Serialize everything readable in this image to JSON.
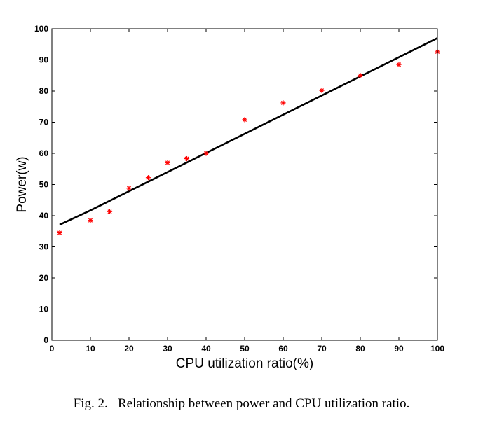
{
  "chart_data": {
    "type": "scatter",
    "title": "",
    "xlabel": "CPU utilization ratio(%)",
    "ylabel": "Power(w)",
    "xlim": [
      0,
      100
    ],
    "ylim": [
      0,
      100
    ],
    "xticks": [
      0,
      10,
      20,
      30,
      40,
      50,
      60,
      70,
      80,
      90,
      100
    ],
    "yticks": [
      0,
      10,
      20,
      30,
      40,
      50,
      60,
      70,
      80,
      90,
      100
    ],
    "grid": false,
    "series": [
      {
        "type": "scatter",
        "marker": "asterisk",
        "color": "#ff0000",
        "x": [
          2,
          10,
          15,
          20,
          25,
          30,
          35,
          40,
          50,
          60,
          70,
          80,
          90,
          100
        ],
        "y": [
          34.5,
          38.5,
          41.3,
          48.8,
          52.2,
          57,
          58.3,
          60,
          70.8,
          76.2,
          80.2,
          85,
          88.5,
          92.6
        ]
      },
      {
        "type": "line",
        "color": "#000000",
        "x": [
          2,
          10,
          100
        ],
        "y": [
          37.1,
          41.7,
          97
        ]
      }
    ]
  },
  "caption": {
    "label": "Fig. 2.",
    "text": "Relationship between power and CPU utilization ratio."
  }
}
